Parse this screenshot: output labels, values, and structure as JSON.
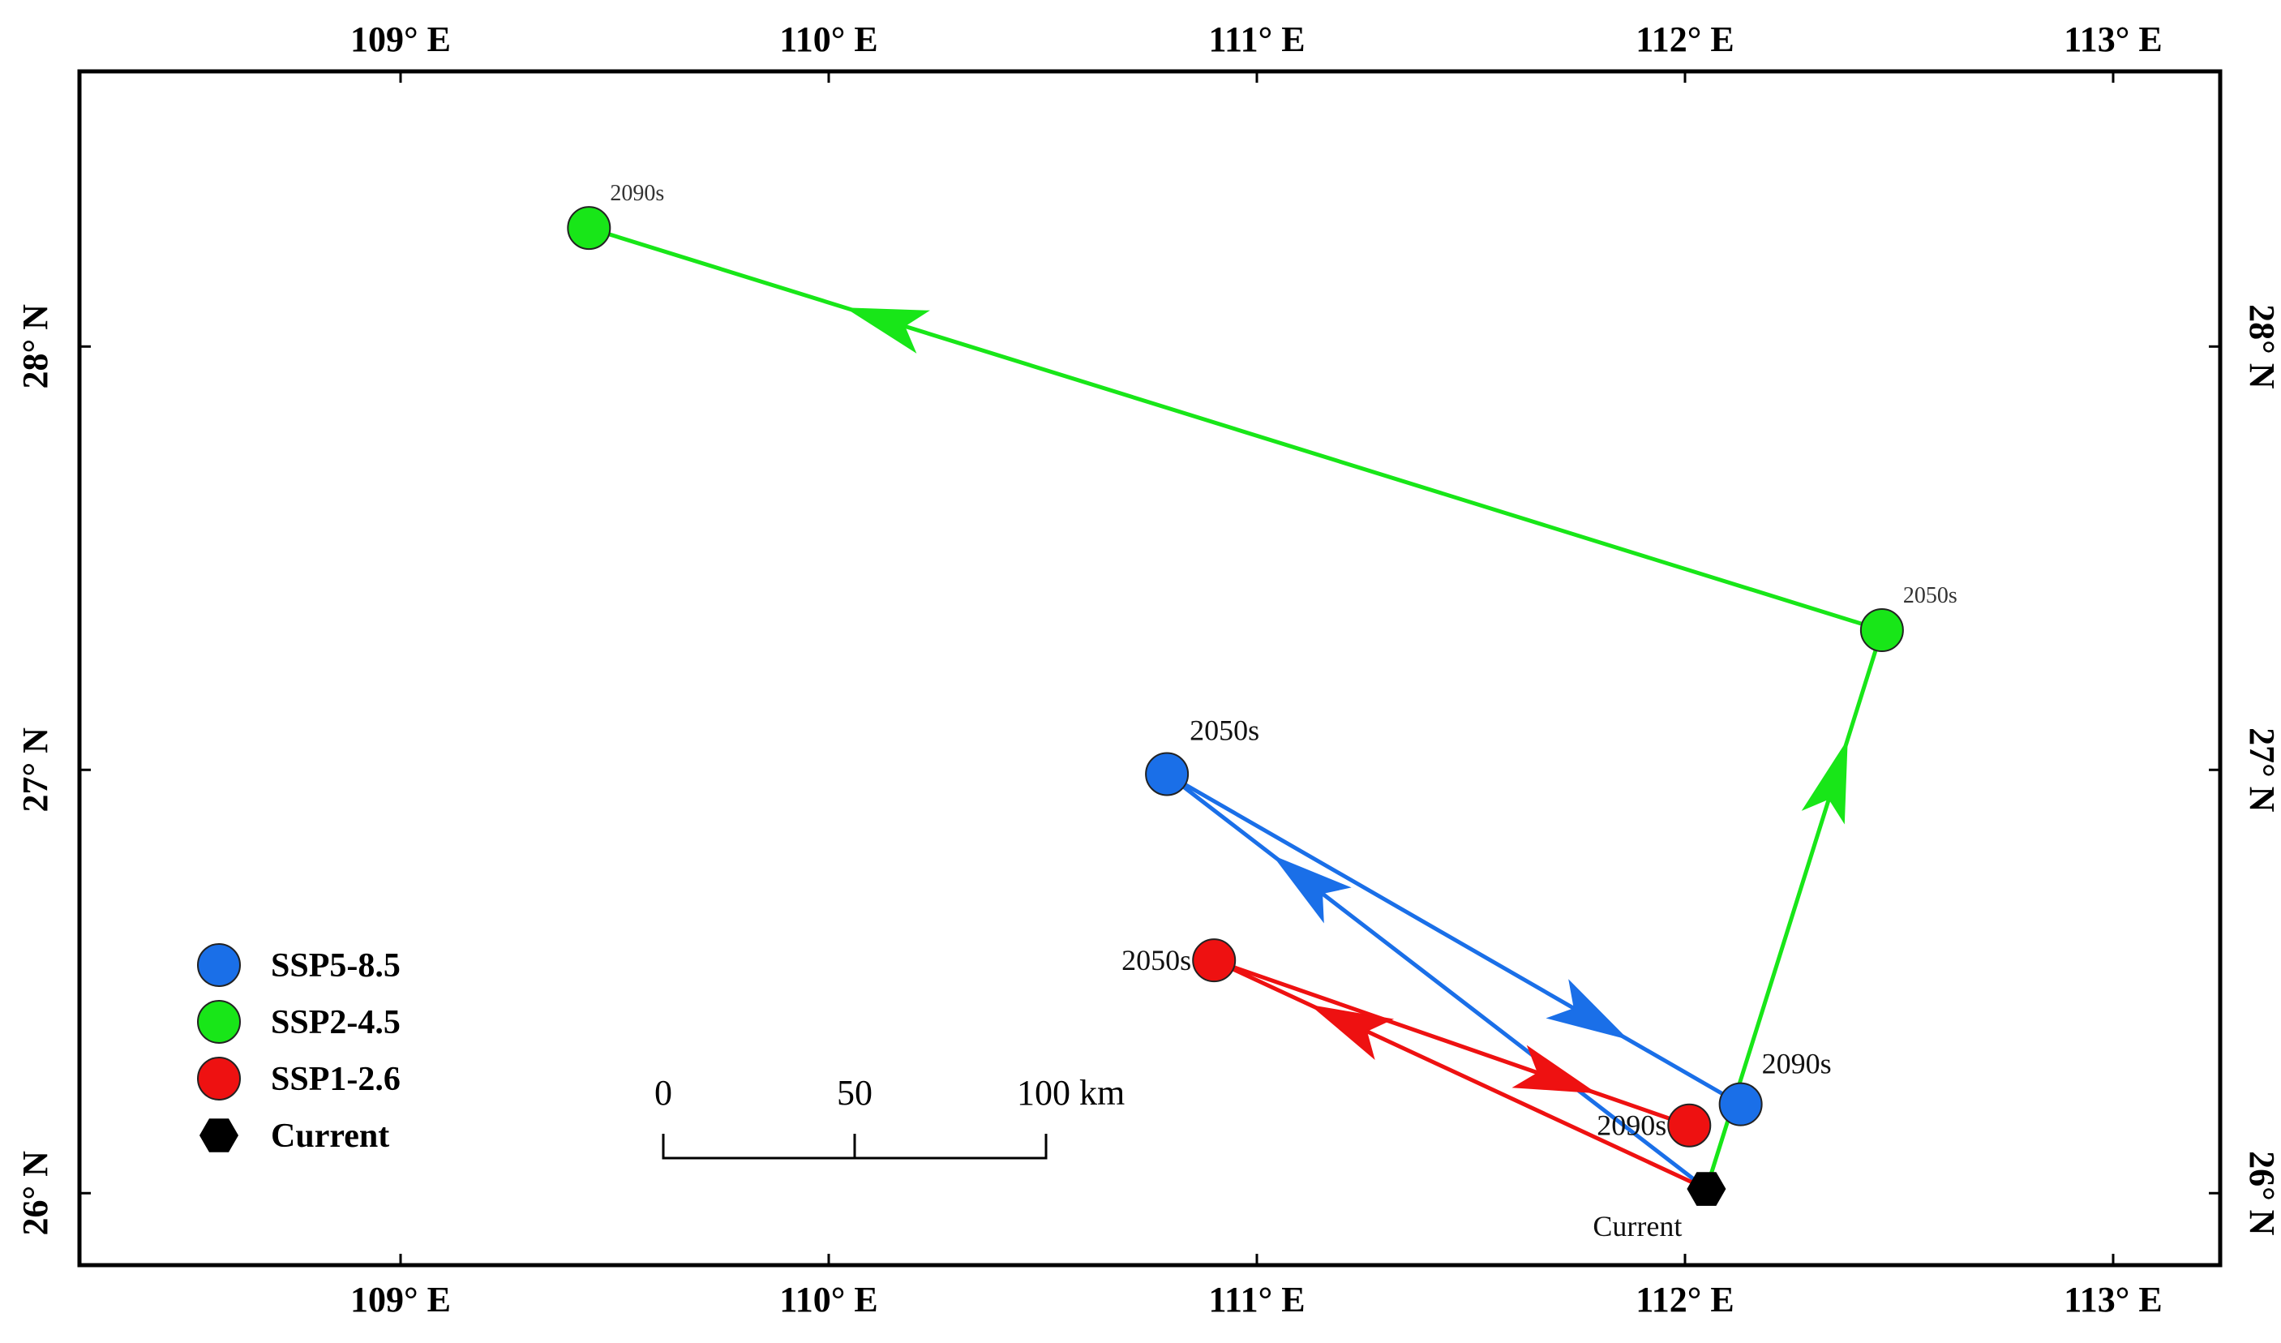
{
  "colors": {
    "SSP5-8.5": "#1a6fe8",
    "SSP2-4.5": "#18e618",
    "SSP1-2.6": "#ee1111",
    "Current": "#000000",
    "frame": "#000000"
  },
  "axes": {
    "lon_range": [
      108.25,
      113.25
    ],
    "lat_range": [
      25.83,
      28.65
    ],
    "lon_ticks": [
      {
        "value": 109,
        "label": "109° E"
      },
      {
        "value": 110,
        "label": "110° E"
      },
      {
        "value": 111,
        "label": "111° E"
      },
      {
        "value": 112,
        "label": "112° E"
      },
      {
        "value": 113,
        "label": "113° E"
      }
    ],
    "lat_ticks": [
      {
        "value": 26,
        "label": "26° N"
      },
      {
        "value": 27,
        "label": "27° N"
      },
      {
        "value": 28,
        "label": "28° N"
      }
    ]
  },
  "current": {
    "label": "Current",
    "lon": 112.05,
    "lat": 26.01
  },
  "scenarios": [
    {
      "name": "SSP5-8.5",
      "points": [
        {
          "label": "2050s",
          "lon": 110.79,
          "lat": 26.99
        },
        {
          "label": "2090s",
          "lon": 112.13,
          "lat": 26.21
        }
      ]
    },
    {
      "name": "SSP2-4.5",
      "points": [
        {
          "label": "2050s",
          "lon": 112.46,
          "lat": 27.33
        },
        {
          "label": "2090s",
          "lon": 109.44,
          "lat": 28.28
        }
      ]
    },
    {
      "name": "SSP1-2.6",
      "points": [
        {
          "label": "2050s",
          "lon": 110.9,
          "lat": 26.55
        },
        {
          "label": "2090s",
          "lon": 112.01,
          "lat": 26.16
        }
      ]
    }
  ],
  "legend": {
    "items": [
      {
        "label": "SSP5-8.5",
        "symbol": "circle",
        "color_key": "SSP5-8.5"
      },
      {
        "label": "SSP2-4.5",
        "symbol": "circle",
        "color_key": "SSP2-4.5"
      },
      {
        "label": "SSP1-2.6",
        "symbol": "circle",
        "color_key": "SSP1-2.6"
      },
      {
        "label": "Current",
        "symbol": "hexagon",
        "color_key": "Current"
      }
    ]
  },
  "scale_bar": {
    "unit": "km",
    "ticks": [
      "0",
      "50",
      "100 km"
    ]
  }
}
